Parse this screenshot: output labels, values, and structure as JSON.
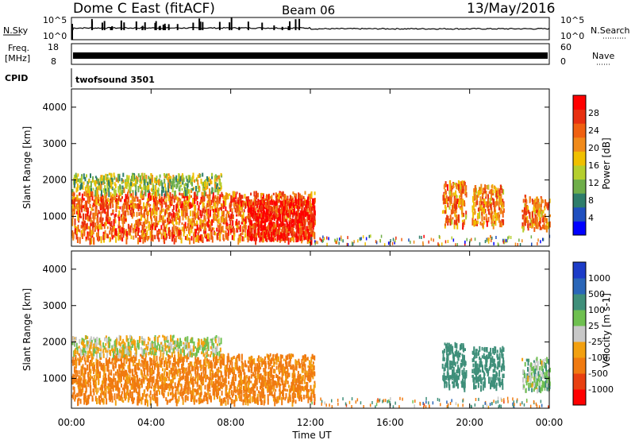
{
  "header": {
    "station": "Dome C East (fitACF)",
    "beam": "Beam 06",
    "date": "13/May/2016"
  },
  "top_panels": {
    "nsky_label": "N.Sky",
    "nsky_ticks": [
      "10^5",
      "10^0"
    ],
    "nsearch_label": "N.Search",
    "nsearch_ticks": [
      "10^5",
      "10^0"
    ],
    "freq_label": "Freq.",
    "freq_unit": "[MHz]",
    "freq_ticks": [
      "18",
      "8"
    ],
    "nave_label": "Nave",
    "nave_ticks": [
      "60",
      "0"
    ],
    "cpid_label": "CPID",
    "cpid_value": "twofsound 3501"
  },
  "x_axis": {
    "label": "Time UT",
    "ticks": [
      "00:00",
      "04:00",
      "08:00",
      "12:00",
      "16:00",
      "20:00",
      "00:00"
    ]
  },
  "colors": {
    "power_scale": [
      "#0000ff",
      "#1f4fbf",
      "#2e7d6b",
      "#6fae4a",
      "#b5cf2e",
      "#f0c000",
      "#f08a1a",
      "#f06010",
      "#e83010",
      "#ff0000"
    ],
    "velocity_scale": [
      "#1c3cc8",
      "#2a66b8",
      "#3f8f7a",
      "#6fc050",
      "#c8c8c8",
      "#f2a010",
      "#f07a10",
      "#e84010",
      "#ff0000"
    ]
  },
  "chart_data": [
    {
      "type": "heatmap",
      "panel": "power",
      "ylabel": "Slant Range [km]",
      "yticks": [
        "1000",
        "2000",
        "3000",
        "4000"
      ],
      "ylim": [
        180,
        4500
      ],
      "xlim_hours": [
        0,
        24
      ],
      "colorbar_label": "Power [dB]",
      "colorbar_ticks": [
        "28",
        "24",
        "20",
        "16",
        "12",
        "8",
        "4"
      ],
      "colorbar_range": [
        0,
        32
      ],
      "regions": [
        {
          "t0": 0.0,
          "t1": 12.2,
          "r0": 400,
          "r1": 1700,
          "level": 24
        },
        {
          "t0": 0.0,
          "t1": 7.5,
          "r0": 1700,
          "r1": 2200,
          "level": 14
        },
        {
          "t0": 8.8,
          "t1": 12.2,
          "r0": 400,
          "r1": 1500,
          "level": 30
        },
        {
          "t0": 18.6,
          "t1": 19.8,
          "r0": 800,
          "r1": 2000,
          "level": 22
        },
        {
          "t0": 20.1,
          "t1": 21.7,
          "r0": 800,
          "r1": 1900,
          "level": 22
        },
        {
          "t0": 22.6,
          "t1": 24.0,
          "r0": 700,
          "r1": 1600,
          "level": 22
        }
      ]
    },
    {
      "type": "heatmap",
      "panel": "velocity",
      "ylabel": "Slant Range [km]",
      "yticks": [
        "1000",
        "2000",
        "3000",
        "4000"
      ],
      "ylim": [
        180,
        4500
      ],
      "xlim_hours": [
        0,
        24
      ],
      "colorbar_label": "Velocity [m s-1]",
      "colorbar_ticks": [
        "1000",
        "500",
        "100",
        "25",
        "-25",
        "-100",
        "-500",
        "-1000"
      ],
      "regions": [
        {
          "t0": 0.0,
          "t1": 12.2,
          "r0": 400,
          "r1": 1700,
          "value": -150
        },
        {
          "t0": 0.0,
          "t1": 7.5,
          "r0": 1700,
          "r1": 2200,
          "value": 0
        },
        {
          "t0": 18.6,
          "t1": 19.8,
          "r0": 800,
          "r1": 2000,
          "value": 300
        },
        {
          "t0": 20.1,
          "t1": 21.7,
          "r0": 800,
          "r1": 1900,
          "value": 200
        },
        {
          "t0": 22.6,
          "t1": 24.0,
          "r0": 700,
          "r1": 1600,
          "value": 50
        }
      ]
    }
  ]
}
